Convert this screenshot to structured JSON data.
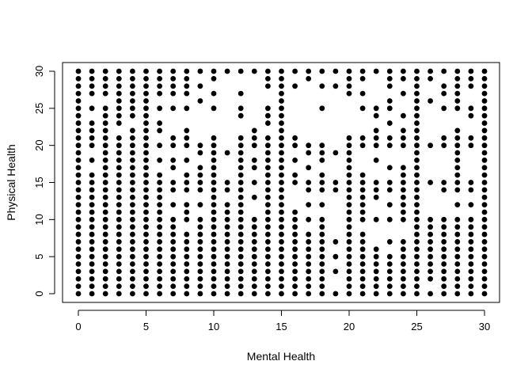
{
  "chart_data": {
    "type": "scatter",
    "title": "",
    "xlabel": "Mental Health",
    "ylabel": "Physical Health",
    "xlim": [
      0,
      30
    ],
    "ylim": [
      0,
      30
    ],
    "x_ticks": [
      0,
      5,
      10,
      15,
      20,
      25,
      30
    ],
    "y_ticks": [
      0,
      5,
      10,
      15,
      20,
      25,
      30
    ],
    "x_tick_labels": [
      "0",
      "5",
      "10",
      "15",
      "20",
      "25",
      "30"
    ],
    "y_tick_labels": [
      "0",
      "5",
      "10",
      "15",
      "20",
      "25",
      "30"
    ],
    "grid": false,
    "legend": "none",
    "marker_color": "#000000",
    "points_by_x": [
      {
        "x": 0,
        "y": [
          0,
          1,
          2,
          3,
          4,
          5,
          6,
          7,
          8,
          9,
          10,
          11,
          12,
          13,
          14,
          15,
          16,
          17,
          18,
          19,
          20,
          21,
          22,
          23,
          24,
          25,
          26,
          27,
          28,
          29,
          30
        ]
      },
      {
        "x": 1,
        "y": [
          0,
          1,
          2,
          3,
          4,
          5,
          6,
          7,
          8,
          9,
          10,
          11,
          12,
          13,
          14,
          15,
          16,
          18,
          20,
          21,
          22,
          23,
          25,
          27,
          28,
          29,
          30
        ]
      },
      {
        "x": 2,
        "y": [
          0,
          1,
          2,
          3,
          4,
          5,
          6,
          7,
          8,
          9,
          10,
          11,
          12,
          13,
          14,
          15,
          16,
          17,
          18,
          19,
          20,
          21,
          22,
          23,
          24,
          25,
          27,
          28,
          29,
          30
        ]
      },
      {
        "x": 3,
        "y": [
          0,
          1,
          2,
          3,
          4,
          5,
          6,
          7,
          8,
          9,
          10,
          11,
          12,
          13,
          14,
          15,
          16,
          17,
          18,
          19,
          20,
          21,
          23,
          24,
          25,
          26,
          27,
          28,
          29,
          30
        ]
      },
      {
        "x": 4,
        "y": [
          0,
          1,
          2,
          3,
          4,
          5,
          6,
          7,
          8,
          9,
          10,
          11,
          12,
          13,
          14,
          15,
          16,
          17,
          18,
          19,
          20,
          21,
          22,
          24,
          25,
          26,
          27,
          28,
          29,
          30
        ]
      },
      {
        "x": 5,
        "y": [
          0,
          1,
          2,
          3,
          4,
          5,
          6,
          7,
          8,
          9,
          10,
          11,
          12,
          13,
          14,
          15,
          16,
          17,
          18,
          19,
          20,
          21,
          22,
          23,
          24,
          25,
          26,
          27,
          28,
          29,
          30
        ]
      },
      {
        "x": 6,
        "y": [
          0,
          1,
          2,
          3,
          4,
          5,
          6,
          7,
          8,
          9,
          10,
          11,
          12,
          13,
          14,
          15,
          16,
          18,
          20,
          22,
          23,
          25,
          27,
          28,
          29,
          30
        ]
      },
      {
        "x": 7,
        "y": [
          0,
          1,
          2,
          3,
          4,
          5,
          6,
          7,
          8,
          9,
          10,
          12,
          14,
          15,
          17,
          18,
          20,
          21,
          25,
          27,
          28,
          29,
          30
        ]
      },
      {
        "x": 8,
        "y": [
          0,
          1,
          2,
          3,
          4,
          5,
          6,
          7,
          8,
          10,
          11,
          12,
          14,
          15,
          16,
          18,
          20,
          21,
          22,
          25,
          27,
          28,
          29,
          30
        ]
      },
      {
        "x": 9,
        "y": [
          0,
          1,
          2,
          3,
          4,
          5,
          6,
          7,
          8,
          9,
          10,
          12,
          14,
          15,
          16,
          17,
          19,
          20,
          26,
          28,
          30
        ]
      },
      {
        "x": 10,
        "y": [
          0,
          1,
          2,
          3,
          4,
          5,
          6,
          7,
          8,
          9,
          10,
          11,
          12,
          13,
          14,
          15,
          16,
          17,
          18,
          19,
          20,
          21,
          25,
          27,
          29,
          30
        ]
      },
      {
        "x": 11,
        "y": [
          0,
          1,
          2,
          3,
          4,
          5,
          6,
          7,
          8,
          9,
          10,
          11,
          12,
          14,
          15,
          19,
          30
        ]
      },
      {
        "x": 12,
        "y": [
          0,
          1,
          2,
          3,
          4,
          5,
          6,
          7,
          8,
          9,
          10,
          11,
          12,
          13,
          14,
          15,
          16,
          17,
          18,
          19,
          20,
          21,
          24,
          25,
          27,
          30
        ]
      },
      {
        "x": 13,
        "y": [
          0,
          1,
          2,
          3,
          4,
          5,
          6,
          7,
          8,
          9,
          10,
          13,
          15,
          17,
          18,
          20,
          21,
          22,
          30
        ]
      },
      {
        "x": 14,
        "y": [
          0,
          1,
          2,
          3,
          4,
          5,
          6,
          7,
          8,
          9,
          10,
          11,
          12,
          13,
          14,
          15,
          16,
          17,
          18,
          19,
          20,
          21,
          23,
          24,
          25,
          28,
          29,
          30
        ]
      },
      {
        "x": 15,
        "y": [
          0,
          1,
          2,
          3,
          4,
          5,
          6,
          7,
          8,
          9,
          10,
          11,
          12,
          13,
          14,
          15,
          16,
          17,
          18,
          19,
          20,
          21,
          22,
          23,
          24,
          25,
          26,
          27,
          28,
          29,
          30
        ]
      },
      {
        "x": 16,
        "y": [
          0,
          1,
          2,
          3,
          4,
          5,
          6,
          7,
          8,
          9,
          10,
          11,
          15,
          16,
          18,
          20,
          21,
          28,
          30
        ]
      },
      {
        "x": 17,
        "y": [
          0,
          1,
          2,
          3,
          4,
          5,
          6,
          7,
          8,
          10,
          12,
          14,
          15,
          17,
          19,
          20,
          29,
          30
        ]
      },
      {
        "x": 18,
        "y": [
          0,
          1,
          2,
          3,
          4,
          5,
          6,
          7,
          8,
          9,
          10,
          12,
          14,
          15,
          16,
          18,
          19,
          20,
          25,
          28,
          30
        ]
      },
      {
        "x": 19,
        "y": [
          0,
          3,
          5,
          7,
          14,
          15,
          19,
          28,
          30
        ]
      },
      {
        "x": 20,
        "y": [
          0,
          1,
          2,
          3,
          4,
          5,
          6,
          7,
          8,
          9,
          10,
          11,
          12,
          13,
          14,
          15,
          16,
          17,
          18,
          19,
          20,
          21,
          27,
          28,
          29,
          30
        ]
      },
      {
        "x": 21,
        "y": [
          0,
          1,
          2,
          3,
          4,
          5,
          6,
          7,
          8,
          10,
          11,
          12,
          13,
          14,
          15,
          16,
          20,
          21,
          25,
          27,
          29,
          30
        ]
      },
      {
        "x": 22,
        "y": [
          0,
          1,
          2,
          3,
          4,
          5,
          6,
          10,
          13,
          14,
          15,
          18,
          20,
          21,
          22,
          24,
          25,
          30
        ]
      },
      {
        "x": 23,
        "y": [
          0,
          1,
          2,
          3,
          4,
          5,
          7,
          10,
          12,
          14,
          15,
          17,
          20,
          21,
          23,
          25,
          26,
          28,
          29,
          30
        ]
      },
      {
        "x": 24,
        "y": [
          0,
          1,
          2,
          3,
          4,
          5,
          6,
          7,
          10,
          11,
          12,
          13,
          14,
          15,
          16,
          17,
          20,
          21,
          22,
          24,
          27,
          29,
          30
        ]
      },
      {
        "x": 25,
        "y": [
          0,
          1,
          2,
          3,
          4,
          5,
          6,
          7,
          8,
          9,
          10,
          11,
          12,
          13,
          14,
          15,
          16,
          17,
          18,
          19,
          20,
          21,
          22,
          23,
          24,
          25,
          26,
          27,
          28,
          29,
          30
        ]
      },
      {
        "x": 26,
        "y": [
          0,
          2,
          3,
          4,
          5,
          6,
          7,
          8,
          9,
          10,
          15,
          20,
          26,
          29,
          30
        ]
      },
      {
        "x": 27,
        "y": [
          0,
          1,
          2,
          3,
          4,
          5,
          6,
          7,
          8,
          9,
          10,
          14,
          15,
          20,
          21,
          25,
          27,
          28,
          30
        ]
      },
      {
        "x": 28,
        "y": [
          0,
          1,
          2,
          3,
          4,
          5,
          6,
          7,
          8,
          9,
          10,
          12,
          14,
          15,
          16,
          17,
          18,
          19,
          20,
          21,
          22,
          25,
          26,
          27,
          28,
          29,
          30
        ]
      },
      {
        "x": 29,
        "y": [
          0,
          1,
          2,
          3,
          4,
          5,
          6,
          7,
          8,
          9,
          10,
          12,
          14,
          15,
          20,
          21,
          24,
          25,
          28,
          29,
          30
        ]
      },
      {
        "x": 30,
        "y": [
          0,
          1,
          2,
          3,
          4,
          5,
          6,
          7,
          8,
          9,
          10,
          11,
          12,
          13,
          14,
          15,
          16,
          17,
          18,
          19,
          20,
          21,
          22,
          23,
          24,
          25,
          26,
          27,
          28,
          29,
          30
        ]
      }
    ]
  }
}
